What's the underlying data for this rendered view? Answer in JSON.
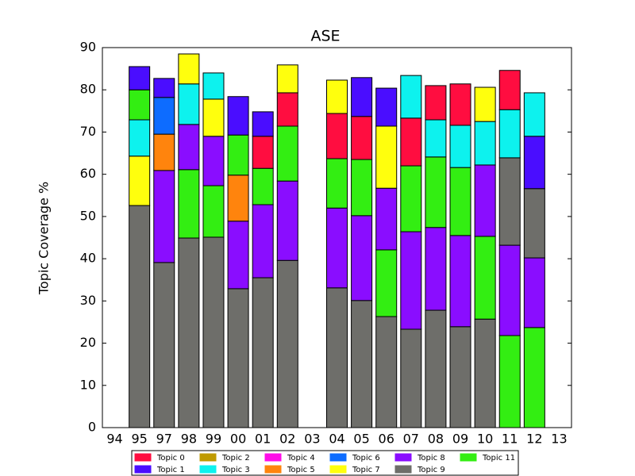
{
  "chart_data": {
    "type": "stacked-bar",
    "title": "ASE",
    "y_label": "Topic Coverage %",
    "categories": [
      "94",
      "95",
      "97",
      "98",
      "99",
      "00",
      "01",
      "02",
      "03",
      "04",
      "05",
      "06",
      "07",
      "08",
      "09",
      "10",
      "11",
      "12",
      "13"
    ],
    "series": [
      {
        "name": "Topic 0",
        "color": "#ff0d40"
      },
      {
        "name": "Topic 1",
        "color": "#4a0dff"
      },
      {
        "name": "Topic 2",
        "color": "#bf9a00"
      },
      {
        "name": "Topic 3",
        "color": "#0df2ee"
      },
      {
        "name": "Topic 4",
        "color": "#ff0de8"
      },
      {
        "name": "Topic 5",
        "color": "#ff840d"
      },
      {
        "name": "Topic 6",
        "color": "#0d6cff"
      },
      {
        "name": "Topic 7",
        "color": "#ffff0d"
      },
      {
        "name": "Topic 8",
        "color": "#8a0dff"
      },
      {
        "name": "Topic 9",
        "color": "#6e6e6a"
      },
      {
        "name": "Topic 11",
        "color": "#33ee12"
      }
    ],
    "bars": [
      [],
      [
        {
          "series": 9,
          "value": 52.6
        },
        {
          "series": 7,
          "value": 11.7
        },
        {
          "series": 3,
          "value": 8.6
        },
        {
          "series": 10,
          "value": 7.1
        },
        {
          "series": 1,
          "value": 5.5
        }
      ],
      [
        {
          "series": 9,
          "value": 39.1
        },
        {
          "series": 8,
          "value": 21.8
        },
        {
          "series": 5,
          "value": 8.6
        },
        {
          "series": 6,
          "value": 8.7
        },
        {
          "series": 1,
          "value": 4.5
        }
      ],
      [
        {
          "series": 9,
          "value": 44.9
        },
        {
          "series": 10,
          "value": 16.2
        },
        {
          "series": 8,
          "value": 10.7
        },
        {
          "series": 3,
          "value": 9.6
        },
        {
          "series": 7,
          "value": 7.1
        }
      ],
      [
        {
          "series": 9,
          "value": 45.1
        },
        {
          "series": 10,
          "value": 12.2
        },
        {
          "series": 8,
          "value": 11.7
        },
        {
          "series": 7,
          "value": 8.8
        },
        {
          "series": 3,
          "value": 6.2
        }
      ],
      [
        {
          "series": 9,
          "value": 32.9
        },
        {
          "series": 8,
          "value": 16
        },
        {
          "series": 5,
          "value": 10.9
        },
        {
          "series": 10,
          "value": 9.5
        },
        {
          "series": 1,
          "value": 9.1
        }
      ],
      [
        {
          "series": 9,
          "value": 35.5
        },
        {
          "series": 8,
          "value": 17.3
        },
        {
          "series": 10,
          "value": 8.6
        },
        {
          "series": 0,
          "value": 7.6
        },
        {
          "series": 1,
          "value": 5.8
        }
      ],
      [
        {
          "series": 9,
          "value": 39.6
        },
        {
          "series": 8,
          "value": 18.8
        },
        {
          "series": 10,
          "value": 13
        },
        {
          "series": 0,
          "value": 7.9
        },
        {
          "series": 7,
          "value": 6.6
        }
      ],
      [],
      [
        {
          "series": 9,
          "value": 33.1
        },
        {
          "series": 8,
          "value": 18.9
        },
        {
          "series": 10,
          "value": 11.7
        },
        {
          "series": 0,
          "value": 10.7
        },
        {
          "series": 7,
          "value": 7.9
        }
      ],
      [
        {
          "series": 9,
          "value": 30.1
        },
        {
          "series": 8,
          "value": 20.1
        },
        {
          "series": 10,
          "value": 13.3
        },
        {
          "series": 0,
          "value": 10.2
        },
        {
          "series": 1,
          "value": 9.2
        }
      ],
      [
        {
          "series": 9,
          "value": 26.3
        },
        {
          "series": 10,
          "value": 15.8
        },
        {
          "series": 8,
          "value": 14.6
        },
        {
          "series": 7,
          "value": 14.7
        },
        {
          "series": 1,
          "value": 9
        }
      ],
      [
        {
          "series": 9,
          "value": 23.3
        },
        {
          "series": 8,
          "value": 23.1
        },
        {
          "series": 10,
          "value": 15.6
        },
        {
          "series": 0,
          "value": 11.3
        },
        {
          "series": 3,
          "value": 10.1
        }
      ],
      [
        {
          "series": 9,
          "value": 27.8
        },
        {
          "series": 8,
          "value": 19.6
        },
        {
          "series": 10,
          "value": 16.7
        },
        {
          "series": 3,
          "value": 8.8
        },
        {
          "series": 0,
          "value": 8.1
        }
      ],
      [
        {
          "series": 9,
          "value": 23.9
        },
        {
          "series": 8,
          "value": 21.6
        },
        {
          "series": 10,
          "value": 16.1
        },
        {
          "series": 3,
          "value": 10
        },
        {
          "series": 0,
          "value": 9.8
        }
      ],
      [
        {
          "series": 9,
          "value": 25.7
        },
        {
          "series": 10,
          "value": 19.6
        },
        {
          "series": 8,
          "value": 16.9
        },
        {
          "series": 3,
          "value": 10.3
        },
        {
          "series": 7,
          "value": 8.1
        }
      ],
      [
        {
          "series": 10,
          "value": 21.8
        },
        {
          "series": 8,
          "value": 21.4
        },
        {
          "series": 9,
          "value": 20.7
        },
        {
          "series": 3,
          "value": 11.4
        },
        {
          "series": 0,
          "value": 9.3
        }
      ],
      [
        {
          "series": 10,
          "value": 23.7
        },
        {
          "series": 8,
          "value": 16.5
        },
        {
          "series": 9,
          "value": 16.4
        },
        {
          "series": 1,
          "value": 12.4
        },
        {
          "series": 3,
          "value": 10.3
        }
      ],
      []
    ],
    "ylim": [
      0,
      90
    ],
    "yticks": [
      0,
      10,
      20,
      30,
      40,
      50,
      60,
      70,
      80,
      90
    ],
    "legend": "bottom"
  }
}
